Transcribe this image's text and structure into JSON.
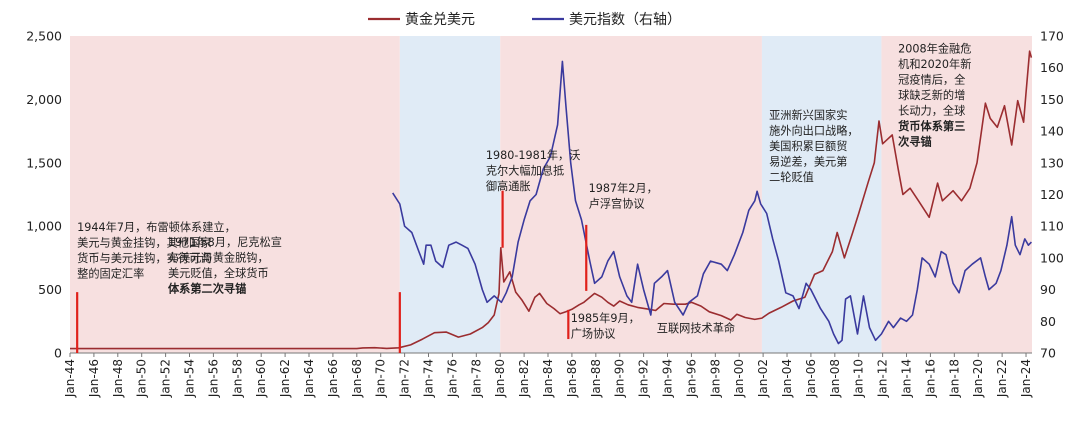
{
  "chart_data": {
    "type": "line",
    "legend": [
      {
        "name": "黄金兑美元",
        "color": "#9b2d30"
      },
      {
        "name": "美元指数（右轴）",
        "color": "#3a3a9e"
      }
    ],
    "legend_position": "top-center",
    "y_left": {
      "min": 0,
      "max": 2500,
      "ticks": [
        "0",
        "500",
        "1,000",
        "1,500",
        "2,000",
        "2,500"
      ]
    },
    "y_right": {
      "min": 70,
      "max": 170,
      "ticks": [
        "70",
        "80",
        "90",
        "100",
        "110",
        "120",
        "130",
        "140",
        "150",
        "160",
        "170"
      ]
    },
    "x_range": [
      1944,
      2024.5
    ],
    "x_ticks": [
      "Jan-44",
      "Jan-46",
      "Jan-48",
      "Jan-50",
      "Jan-52",
      "Jan-54",
      "Jan-56",
      "Jan-58",
      "Jan-60",
      "Jan-62",
      "Jan-64",
      "Jan-66",
      "Jan-68",
      "Jan-70",
      "Jan-72",
      "Jan-74",
      "Jan-76",
      "Jan-78",
      "Jan-80",
      "Jan-82",
      "Jan-84",
      "Jan-86",
      "Jan-88",
      "Jan-90",
      "Jan-92",
      "Jan-94",
      "Jan-96",
      "Jan-98",
      "Jan-00",
      "Jan-02",
      "Jan-04",
      "Jan-06",
      "Jan-08",
      "Jan-10",
      "Jan-12",
      "Jan-14",
      "Jan-16",
      "Jan-18",
      "Jan-20",
      "Jan-22",
      "Jan-24"
    ],
    "periods": [
      {
        "start": 1944,
        "end": 1971.6,
        "color": "#f7e0e0"
      },
      {
        "start": 1971.6,
        "end": 1980.0,
        "color": "#e0ebf6"
      },
      {
        "start": 1980.0,
        "end": 2001.9,
        "color": "#f7e0e0"
      },
      {
        "start": 2001.9,
        "end": 2011.9,
        "color": "#e0ebf6"
      },
      {
        "start": 2011.9,
        "end": 2024.5,
        "color": "#f7e0e0"
      }
    ],
    "series": [
      {
        "name": "黄金兑美元",
        "axis": "left",
        "color": "#9b2d30",
        "points": [
          [
            1944.0,
            35
          ],
          [
            1968.0,
            35
          ],
          [
            1968.5,
            40
          ],
          [
            1969.5,
            42
          ],
          [
            1970.5,
            36
          ],
          [
            1971.5,
            41
          ],
          [
            1972.5,
            64
          ],
          [
            1973.5,
            110
          ],
          [
            1974.5,
            160
          ],
          [
            1975.5,
            165
          ],
          [
            1976.5,
            125
          ],
          [
            1977.5,
            150
          ],
          [
            1978.5,
            200
          ],
          [
            1979.0,
            240
          ],
          [
            1979.5,
            300
          ],
          [
            1979.9,
            470
          ],
          [
            1980.05,
            830
          ],
          [
            1980.3,
            560
          ],
          [
            1980.8,
            640
          ],
          [
            1981.3,
            480
          ],
          [
            1981.8,
            420
          ],
          [
            1982.4,
            330
          ],
          [
            1982.9,
            440
          ],
          [
            1983.3,
            470
          ],
          [
            1983.9,
            390
          ],
          [
            1984.5,
            350
          ],
          [
            1985.0,
            310
          ],
          [
            1985.5,
            325
          ],
          [
            1986.0,
            345
          ],
          [
            1986.6,
            380
          ],
          [
            1987.0,
            400
          ],
          [
            1987.9,
            470
          ],
          [
            1988.5,
            440
          ],
          [
            1989.0,
            400
          ],
          [
            1989.5,
            370
          ],
          [
            1990.0,
            410
          ],
          [
            1990.7,
            380
          ],
          [
            1991.5,
            360
          ],
          [
            1992.5,
            345
          ],
          [
            1993.0,
            335
          ],
          [
            1993.7,
            390
          ],
          [
            1994.5,
            385
          ],
          [
            1995.5,
            385
          ],
          [
            1996.0,
            400
          ],
          [
            1996.8,
            370
          ],
          [
            1997.5,
            325
          ],
          [
            1998.5,
            295
          ],
          [
            1999.3,
            260
          ],
          [
            1999.8,
            305
          ],
          [
            2000.5,
            280
          ],
          [
            2001.3,
            265
          ],
          [
            2001.9,
            275
          ],
          [
            2002.5,
            315
          ],
          [
            2003.5,
            360
          ],
          [
            2004.5,
            410
          ],
          [
            2005.5,
            440
          ],
          [
            2006.3,
            620
          ],
          [
            2007.0,
            650
          ],
          [
            2007.8,
            800
          ],
          [
            2008.2,
            950
          ],
          [
            2008.8,
            750
          ],
          [
            2009.5,
            950
          ],
          [
            2010.0,
            1100
          ],
          [
            2010.8,
            1350
          ],
          [
            2011.3,
            1500
          ],
          [
            2011.7,
            1830
          ],
          [
            2012.0,
            1650
          ],
          [
            2012.8,
            1720
          ],
          [
            2013.3,
            1450
          ],
          [
            2013.7,
            1250
          ],
          [
            2014.3,
            1300
          ],
          [
            2015.0,
            1200
          ],
          [
            2015.9,
            1070
          ],
          [
            2016.6,
            1340
          ],
          [
            2017.0,
            1200
          ],
          [
            2017.9,
            1280
          ],
          [
            2018.6,
            1200
          ],
          [
            2019.3,
            1300
          ],
          [
            2019.9,
            1500
          ],
          [
            2020.6,
            1970
          ],
          [
            2021.0,
            1850
          ],
          [
            2021.6,
            1780
          ],
          [
            2022.2,
            1950
          ],
          [
            2022.8,
            1640
          ],
          [
            2023.3,
            1990
          ],
          [
            2023.8,
            1820
          ],
          [
            2024.0,
            2050
          ],
          [
            2024.3,
            2380
          ],
          [
            2024.45,
            2330
          ]
        ]
      },
      {
        "name": "美元指数（右轴）",
        "axis": "right",
        "color": "#3a3a9e",
        "points": [
          [
            1971.0,
            120.5
          ],
          [
            1971.6,
            117
          ],
          [
            1972.0,
            110
          ],
          [
            1972.6,
            108
          ],
          [
            1973.2,
            102
          ],
          [
            1973.6,
            98
          ],
          [
            1973.8,
            104
          ],
          [
            1974.2,
            104
          ],
          [
            1974.6,
            99
          ],
          [
            1975.2,
            97
          ],
          [
            1975.7,
            104
          ],
          [
            1976.3,
            105
          ],
          [
            1976.8,
            104
          ],
          [
            1977.3,
            103
          ],
          [
            1977.9,
            98
          ],
          [
            1978.5,
            90
          ],
          [
            1978.9,
            86
          ],
          [
            1979.5,
            88
          ],
          [
            1980.1,
            86
          ],
          [
            1980.5,
            89
          ],
          [
            1981.0,
            94
          ],
          [
            1981.5,
            105
          ],
          [
            1982.0,
            112
          ],
          [
            1982.5,
            118
          ],
          [
            1983.0,
            120
          ],
          [
            1983.6,
            128
          ],
          [
            1984.2,
            132
          ],
          [
            1984.8,
            142
          ],
          [
            1985.2,
            162
          ],
          [
            1985.5,
            148
          ],
          [
            1985.9,
            130
          ],
          [
            1986.3,
            118
          ],
          [
            1986.8,
            112
          ],
          [
            1987.5,
            99
          ],
          [
            1987.9,
            92
          ],
          [
            1988.5,
            94
          ],
          [
            1989.0,
            99
          ],
          [
            1989.5,
            102
          ],
          [
            1990.0,
            94
          ],
          [
            1990.6,
            88
          ],
          [
            1991.0,
            86
          ],
          [
            1991.5,
            98
          ],
          [
            1992.0,
            90
          ],
          [
            1992.6,
            82
          ],
          [
            1992.9,
            92
          ],
          [
            1993.5,
            94
          ],
          [
            1994.0,
            96
          ],
          [
            1994.6,
            86
          ],
          [
            1995.3,
            82
          ],
          [
            1995.8,
            86
          ],
          [
            1996.5,
            88
          ],
          [
            1997.0,
            95
          ],
          [
            1997.6,
            99
          ],
          [
            1998.5,
            98
          ],
          [
            1999.0,
            96
          ],
          [
            1999.6,
            101
          ],
          [
            2000.3,
            108
          ],
          [
            2000.8,
            115
          ],
          [
            2001.3,
            118
          ],
          [
            2001.5,
            121
          ],
          [
            2001.8,
            117
          ],
          [
            2002.3,
            114
          ],
          [
            2002.8,
            106
          ],
          [
            2003.3,
            99
          ],
          [
            2003.9,
            89
          ],
          [
            2004.5,
            88
          ],
          [
            2005.0,
            84
          ],
          [
            2005.6,
            92
          ],
          [
            2006.0,
            90
          ],
          [
            2006.8,
            84
          ],
          [
            2007.5,
            80
          ],
          [
            2007.9,
            76
          ],
          [
            2008.3,
            73
          ],
          [
            2008.6,
            74
          ],
          [
            2008.9,
            87
          ],
          [
            2009.3,
            88
          ],
          [
            2009.9,
            76
          ],
          [
            2010.4,
            88
          ],
          [
            2010.9,
            78
          ],
          [
            2011.4,
            74
          ],
          [
            2011.9,
            76
          ],
          [
            2012.5,
            80
          ],
          [
            2012.9,
            78
          ],
          [
            2013.5,
            81
          ],
          [
            2014.0,
            80
          ],
          [
            2014.5,
            82
          ],
          [
            2014.9,
            90
          ],
          [
            2015.3,
            100
          ],
          [
            2015.9,
            98
          ],
          [
            2016.4,
            94
          ],
          [
            2016.9,
            102
          ],
          [
            2017.3,
            101
          ],
          [
            2017.9,
            92
          ],
          [
            2018.4,
            89
          ],
          [
            2018.9,
            96
          ],
          [
            2019.5,
            98
          ],
          [
            2020.2,
            100
          ],
          [
            2020.6,
            94
          ],
          [
            2020.9,
            90
          ],
          [
            2021.5,
            92
          ],
          [
            2021.9,
            96
          ],
          [
            2022.4,
            104
          ],
          [
            2022.8,
            113
          ],
          [
            2023.1,
            104
          ],
          [
            2023.5,
            101
          ],
          [
            2023.9,
            106
          ],
          [
            2024.2,
            104
          ],
          [
            2024.45,
            105
          ]
        ]
      }
    ],
    "markers": [
      {
        "x": 1944.6,
        "low": 0,
        "high": 480
      },
      {
        "x": 1971.6,
        "low": 0,
        "high": 480
      },
      {
        "x": 1980.2,
        "low": 830,
        "high": 1280
      },
      {
        "x": 1985.7,
        "low": 110,
        "high": 340
      },
      {
        "x": 1987.2,
        "low": 490,
        "high": 1010
      }
    ],
    "annotations": [
      {
        "lines": [
          "1944年7月，布雷顿体系建立，",
          "美元与黄金挂钩，其他国家",
          "货币与美元挂钩，实行可调",
          "整的固定汇率"
        ],
        "bold_lines": [],
        "x": 1944.6,
        "y": 962
      },
      {
        "lines": [
          "1971年8月，尼克松宣",
          "布美元与黄金脱钩，",
          "美元贬值，全球货币",
          "体系第二次寻锚"
        ],
        "bold_lines": [
          3
        ],
        "x": 1952.2,
        "y": 845
      },
      {
        "lines": [
          "1980-1981年，沃",
          "克尔大幅加息抵",
          "御高通胀"
        ],
        "bold_lines": [],
        "x": 1978.8,
        "y": 1530
      },
      {
        "lines": [
          "1987年2月，",
          "卢浮宫协议"
        ],
        "bold_lines": [],
        "x": 1987.4,
        "y": 1270
      },
      {
        "lines": [
          "1985年9月，",
          "广场协议"
        ],
        "bold_lines": [],
        "x": 1985.9,
        "y": 245
      },
      {
        "lines": [
          "互联网技术革命"
        ],
        "bold_lines": [],
        "x": 1993.1,
        "y": 165
      },
      {
        "lines": [
          "亚洲新兴国家实",
          "施外向出口战略，",
          "美国积累巨额贸",
          "易逆差，美元第",
          "二轮贬值"
        ],
        "bold_lines": [],
        "x": 2002.5,
        "y": 1845
      },
      {
        "lines": [
          "2008年金融危",
          "机和2020年新",
          "冠疫情后，全",
          "球缺乏新的增",
          "长动力，全球",
          "货币体系第三",
          "次寻锚"
        ],
        "bold_lines": [
          5,
          6
        ],
        "x": 2013.3,
        "y": 2370
      }
    ]
  }
}
